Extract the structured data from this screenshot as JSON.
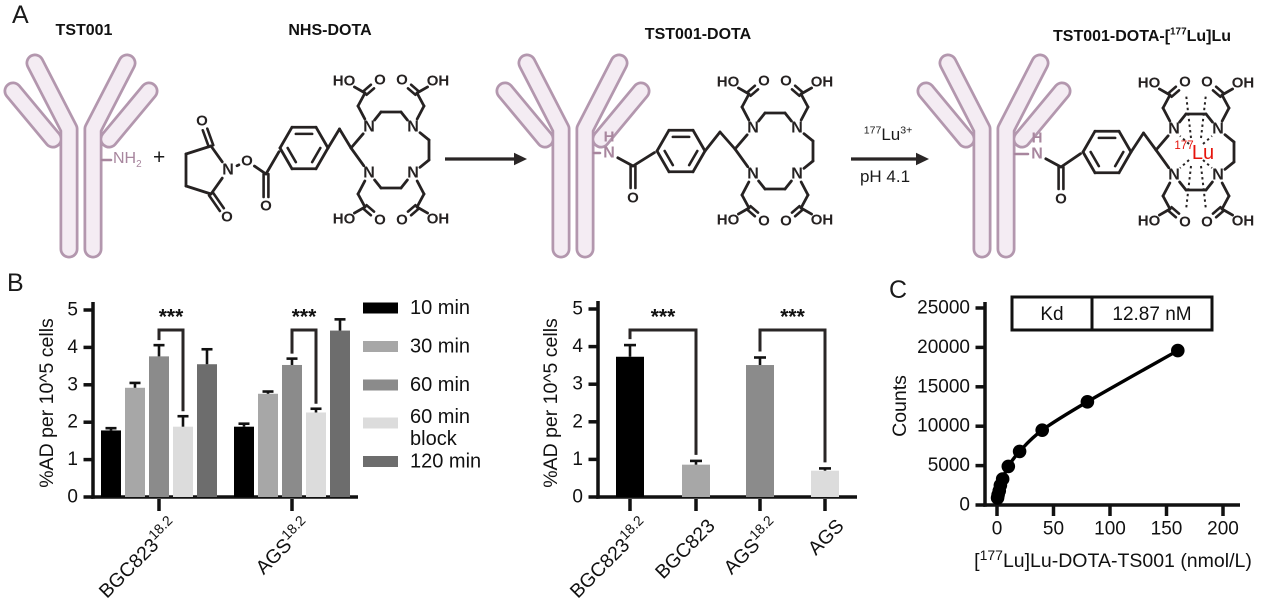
{
  "figure": {
    "panel_labels": {
      "a": "A",
      "b": "B",
      "c": "C"
    }
  },
  "panel_a": {
    "molecule_labels": [
      {
        "text": "TST001"
      },
      {
        "text": "NHS-DOTA"
      },
      {
        "text": "TST001-DOTA"
      },
      {
        "pre": "TST001-DOTA-[",
        "isotope": "177",
        "post": "Lu]Lu"
      }
    ],
    "amine": {
      "main": "NH",
      "sub": "2"
    },
    "plus_sign": "+",
    "arrow2_reagent": {
      "isotope": "177",
      "element": "Lu",
      "charge": "3+"
    },
    "arrow2_condition": "pH 4.1",
    "lu_center": {
      "isotope": "177",
      "element": "Lu"
    },
    "atom_labels": {
      "ho": "HO",
      "o": "O",
      "oh": "OH",
      "n": "N",
      "h": "H"
    },
    "colors": {
      "antibody_fill": "#f4ecf3",
      "antibody_stroke": "#b397ae",
      "bond": "#262222",
      "amide": "#a8869e",
      "lutetium": "#e6140c"
    }
  },
  "chart_data": [
    {
      "id": "cell-uptake-time-course",
      "type": "bar",
      "ylabel": "%AD per 10^5 cells",
      "ylim": [
        0,
        5
      ],
      "yticks": [
        0,
        1,
        2,
        3,
        4,
        5
      ],
      "grid": false,
      "legend_position": "right",
      "categories": [
        {
          "base": "BGC823",
          "sup": "18.2"
        },
        {
          "base": "AGS",
          "sup": "18.2"
        }
      ],
      "series": [
        {
          "name": "10 min",
          "color": "#000000",
          "values": [
            1.78,
            1.88
          ],
          "errors": [
            0.06,
            0.08
          ]
        },
        {
          "name": "30 min",
          "color": "#a7a7a7",
          "values": [
            2.92,
            2.76
          ],
          "errors": [
            0.13,
            0.06
          ]
        },
        {
          "name": "60 min",
          "color": "#8b8b8b",
          "values": [
            3.76,
            3.53
          ],
          "errors": [
            0.3,
            0.17
          ]
        },
        {
          "name": "60 min block",
          "color": "#dcdcdc",
          "values": [
            1.88,
            2.26
          ],
          "errors": [
            0.28,
            0.1
          ]
        },
        {
          "name": "120 min",
          "color": "#6d6d6d",
          "values": [
            3.55,
            4.45
          ],
          "errors": [
            0.4,
            0.3
          ]
        }
      ],
      "legend": [
        {
          "lines": [
            "10 min"
          ]
        },
        {
          "lines": [
            "30 min"
          ]
        },
        {
          "lines": [
            "60 min"
          ]
        },
        {
          "lines": [
            "60 min",
            "block"
          ]
        },
        {
          "lines": [
            "120 min"
          ]
        }
      ],
      "significance": [
        {
          "group": 0,
          "series_a": 2,
          "series_b": 3,
          "label": "***"
        },
        {
          "group": 1,
          "series_a": 2,
          "series_b": 3,
          "label": "***"
        }
      ]
    },
    {
      "id": "uptake-specificity",
      "type": "bar",
      "ylabel": "%AD per 10^5 cells",
      "ylim": [
        0,
        5
      ],
      "yticks": [
        0,
        1,
        2,
        3,
        4,
        5
      ],
      "grid": false,
      "categories": [
        {
          "base": "BGC823",
          "sup": "18.2"
        },
        {
          "base": "BGC823",
          "sup": ""
        },
        {
          "base": "AGS",
          "sup": "18.2"
        },
        {
          "base": "AGS",
          "sup": ""
        }
      ],
      "values": [
        3.73,
        0.86,
        3.51,
        0.7
      ],
      "errors": [
        0.31,
        0.1,
        0.2,
        0.06
      ],
      "colors": [
        "#000000",
        "#a7a7a7",
        "#8b8b8b",
        "#dcdcdc"
      ],
      "significance": [
        {
          "bar_a": 0,
          "bar_b": 1,
          "label": "***"
        },
        {
          "bar_a": 2,
          "bar_b": 3,
          "label": "***"
        }
      ]
    },
    {
      "id": "saturation-binding",
      "type": "scatter-line",
      "xlabel": {
        "pre": "[",
        "isotope": "177",
        "post": "Lu]Lu-DOTA-TS001 (nmol/L)"
      },
      "ylabel": "Counts",
      "xlim": [
        0,
        200
      ],
      "xticks": [
        0,
        50,
        100,
        150,
        200
      ],
      "ylim": [
        0,
        25000
      ],
      "yticks": [
        0,
        5000,
        10000,
        15000,
        20000,
        25000
      ],
      "kd": {
        "label": "Kd",
        "value": "12.87 nM"
      },
      "marker_color": "#000000",
      "line_color": "#000000",
      "points": [
        [
          0.5,
          900
        ],
        [
          1,
          1300
        ],
        [
          2,
          1800
        ],
        [
          3,
          2500
        ],
        [
          5,
          3300
        ],
        [
          10,
          4900
        ],
        [
          20,
          6800
        ],
        [
          40,
          9500
        ],
        [
          80,
          13100
        ],
        [
          160,
          19600
        ]
      ]
    }
  ]
}
